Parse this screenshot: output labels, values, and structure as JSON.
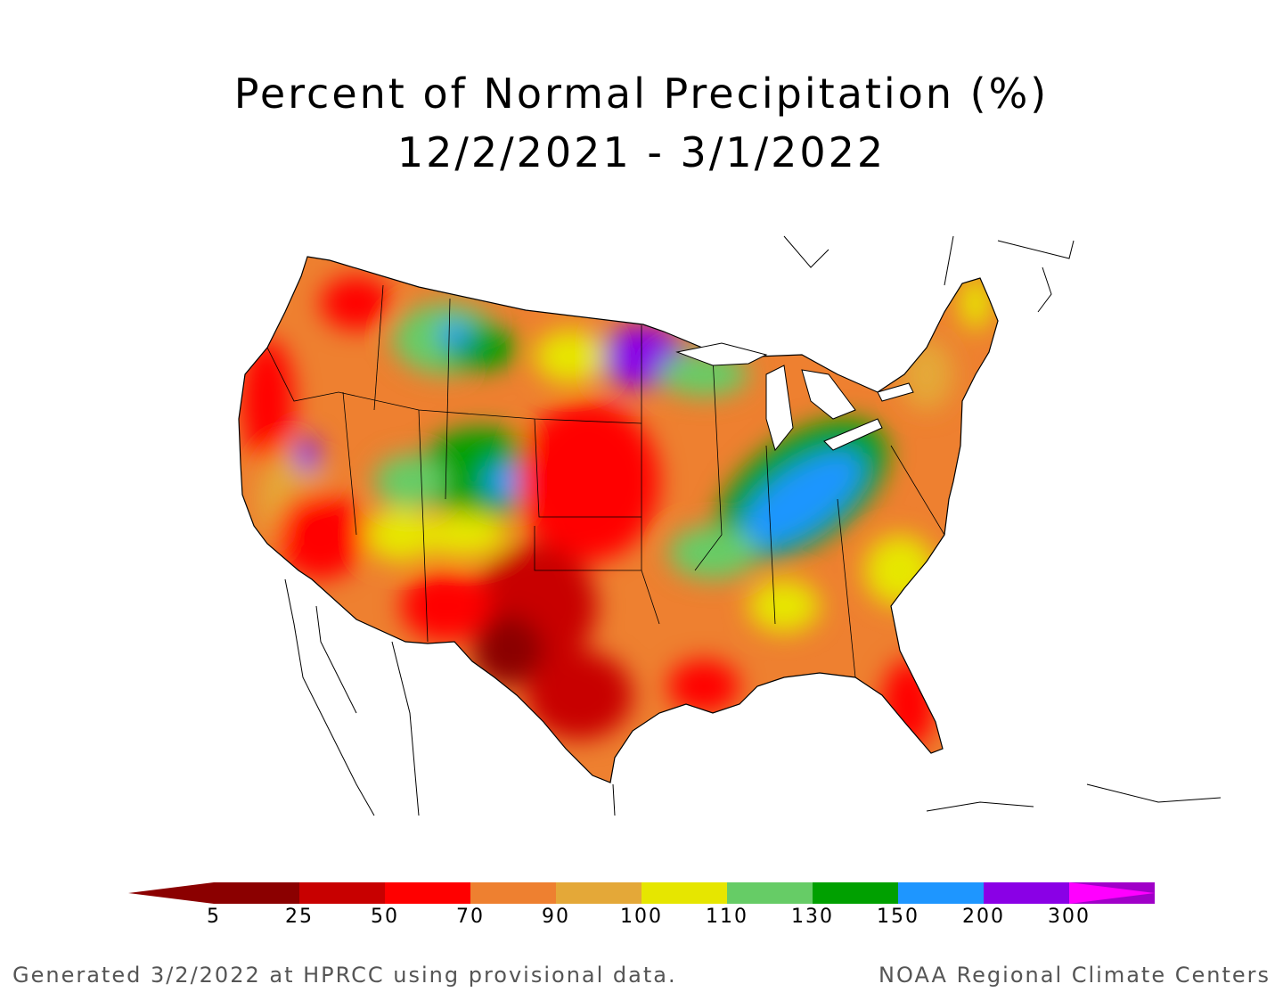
{
  "title": {
    "line1": "Percent of Normal Precipitation (%)",
    "line2": "12/2/2021 - 3/1/2022"
  },
  "legend": {
    "bins": [
      {
        "label": "5",
        "color": "#8b0000"
      },
      {
        "label": "25",
        "color": "#c80000"
      },
      {
        "label": "50",
        "color": "#ff0000"
      },
      {
        "label": "70",
        "color": "#ee8030"
      },
      {
        "label": "90",
        "color": "#e4a838"
      },
      {
        "label": "100",
        "color": "#e6e600"
      },
      {
        "label": "110",
        "color": "#66cc66"
      },
      {
        "label": "130",
        "color": "#00a000"
      },
      {
        "label": "150",
        "color": "#1e96ff"
      },
      {
        "label": "200",
        "color": "#8a00e6"
      },
      {
        "label": "300",
        "color": "#a000c8"
      }
    ],
    "low_color": "#8b0000",
    "high_color": "#ff00ff"
  },
  "footer": {
    "left": "Generated 3/2/2022 at HPRCC using provisional data.",
    "right": "NOAA Regional Climate Centers"
  }
}
